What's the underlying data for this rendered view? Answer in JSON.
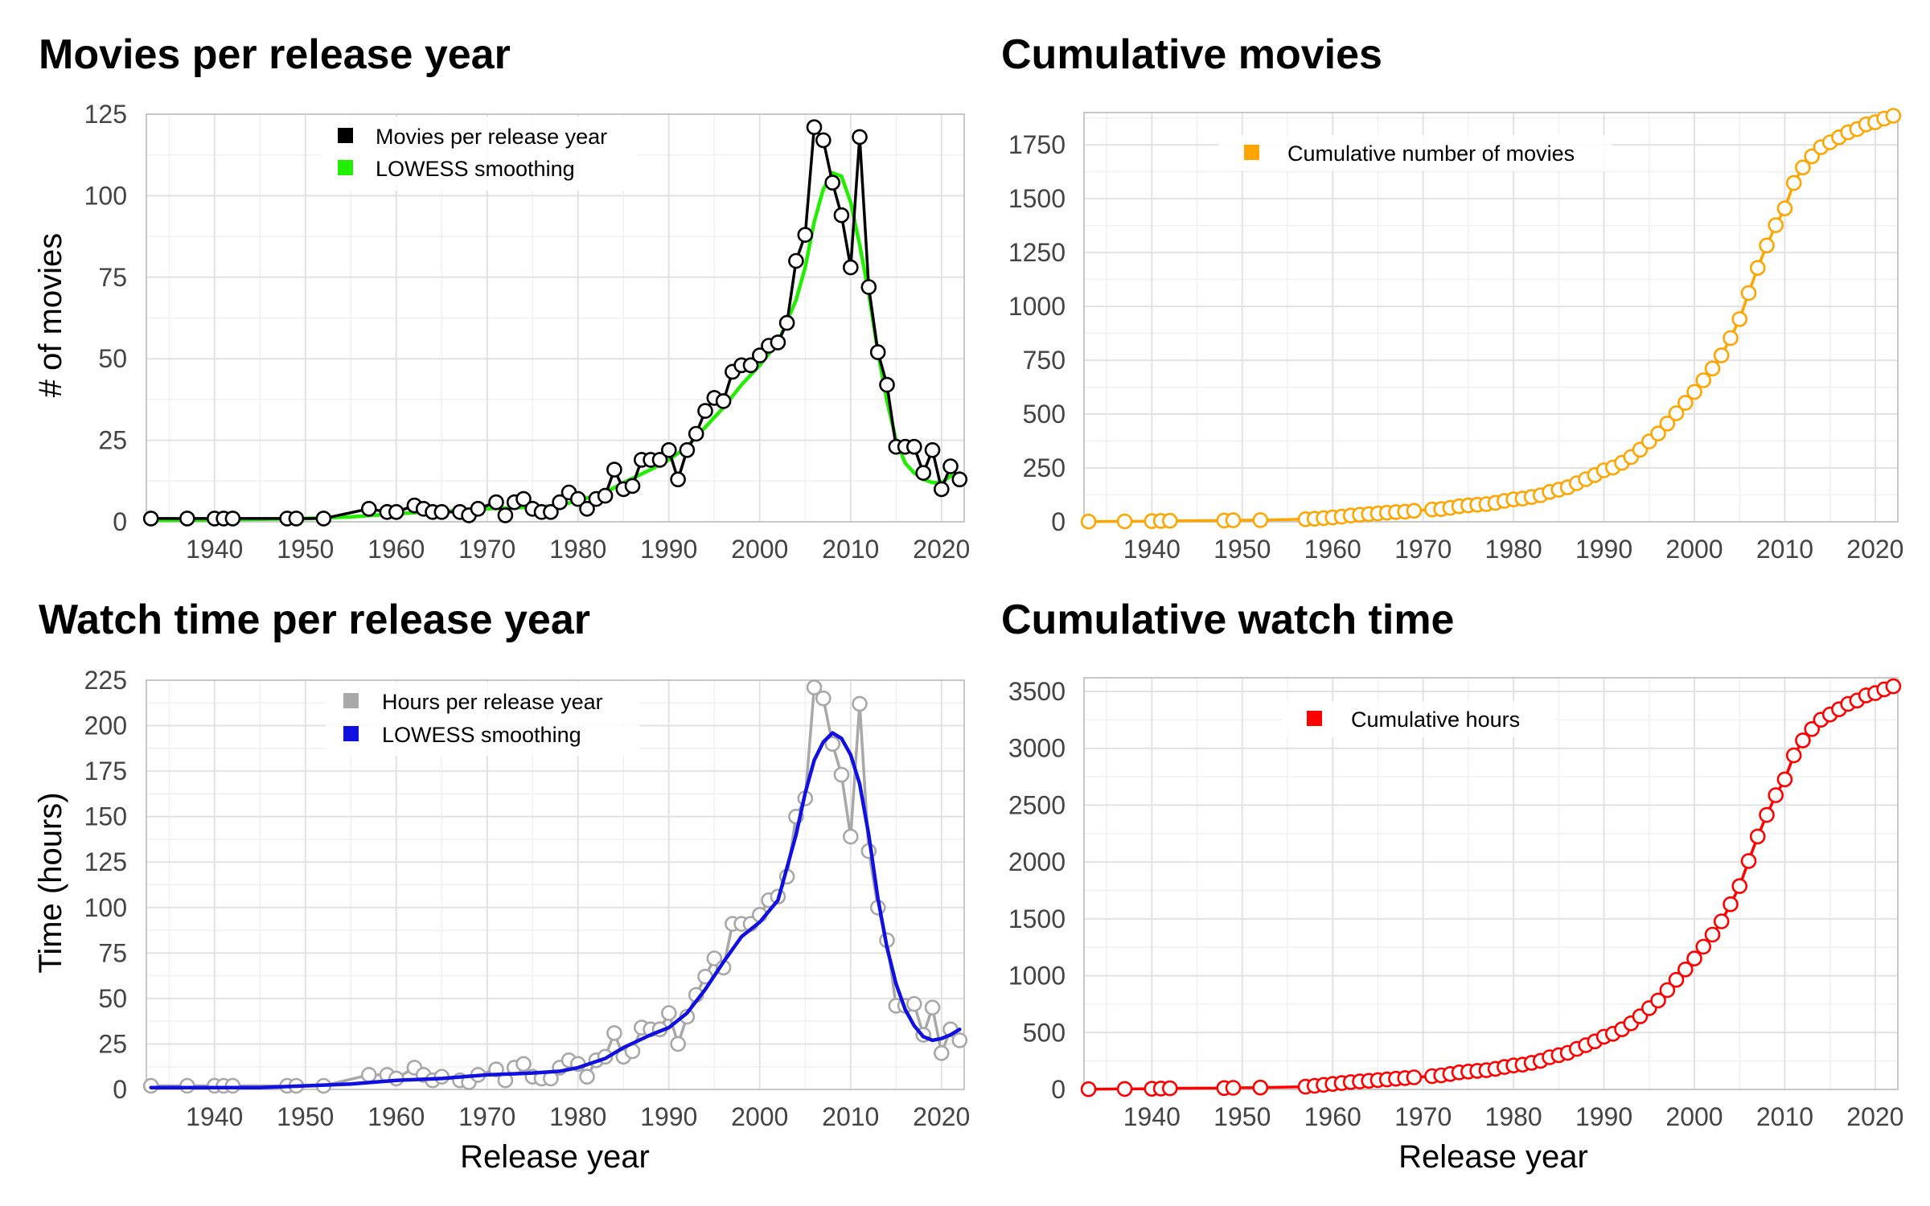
{
  "chart_data": [
    {
      "id": "movies",
      "type": "line",
      "title": "Movies per release year",
      "xlabel": "",
      "ylabel": "# of movies",
      "xlim": [
        1932.5,
        2022.5
      ],
      "ylim": [
        0,
        125
      ],
      "xticks": [
        1940,
        1950,
        1960,
        1970,
        1980,
        1990,
        2000,
        2010,
        2020
      ],
      "yticks": [
        0,
        25,
        50,
        75,
        100,
        125
      ],
      "grid": true,
      "legend": "top-center",
      "series": [
        {
          "name": "Movies per release year",
          "color": "#000000",
          "marker": "open-circle",
          "x": [
            1933,
            1937,
            1940,
            1941,
            1942,
            1948,
            1949,
            1952,
            1957,
            1959,
            1960,
            1962,
            1963,
            1964,
            1965,
            1967,
            1968,
            1969,
            1971,
            1972,
            1973,
            1974,
            1975,
            1976,
            1977,
            1978,
            1979,
            1980,
            1981,
            1982,
            1983,
            1984,
            1985,
            1986,
            1987,
            1988,
            1989,
            1990,
            1991,
            1992,
            1993,
            1994,
            1995,
            1996,
            1997,
            1998,
            1999,
            2000,
            2001,
            2002,
            2003,
            2004,
            2005,
            2006,
            2007,
            2008,
            2009,
            2010,
            2011,
            2012,
            2013,
            2014,
            2015,
            2016,
            2017,
            2018,
            2019,
            2020,
            2021,
            2022
          ],
          "values": [
            1,
            1,
            1,
            1,
            1,
            1,
            1,
            1,
            4,
            3,
            3,
            5,
            4,
            3,
            3,
            3,
            2,
            4,
            6,
            2,
            6,
            7,
            4,
            3,
            3,
            6,
            9,
            7,
            4,
            7,
            8,
            16,
            10,
            11,
            19,
            19,
            19,
            22,
            13,
            22,
            27,
            34,
            38,
            37,
            46,
            48,
            48,
            51,
            54,
            55,
            61,
            80,
            88,
            121,
            117,
            104,
            94,
            78,
            118,
            72,
            52,
            42,
            23,
            23,
            23,
            15,
            22,
            10,
            17,
            13
          ]
        },
        {
          "name": "LOWESS smoothing",
          "color": "#22ee00",
          "marker": "none",
          "x": [
            1933,
            1937,
            1940,
            1945,
            1950,
            1955,
            1960,
            1965,
            1970,
            1975,
            1978,
            1980,
            1983,
            1985,
            1988,
            1990,
            1992,
            1994,
            1996,
            1998,
            2000,
            2002,
            2004,
            2005,
            2006,
            2007,
            2008,
            2009,
            2010,
            2011,
            2012,
            2013,
            2014,
            2015,
            2016,
            2017,
            2018,
            2019,
            2020,
            2021,
            2022
          ],
          "values": [
            0.5,
            0.5,
            0.6,
            0.8,
            1.0,
            1.5,
            2.5,
            3.2,
            4.0,
            4.5,
            5.0,
            6.5,
            9.0,
            12,
            16,
            19,
            23,
            29,
            35,
            42,
            48,
            55,
            68,
            78,
            92,
            102,
            107,
            106,
            98,
            85,
            70,
            52,
            37,
            25,
            18,
            15,
            13,
            12,
            12,
            14,
            15
          ]
        }
      ]
    },
    {
      "id": "cummovies",
      "type": "line",
      "title": "Cumulative movies",
      "xlabel": "",
      "ylabel": "",
      "xlim": [
        1932.5,
        2022.5
      ],
      "ylim": [
        0,
        1900
      ],
      "xticks": [
        1940,
        1950,
        1960,
        1970,
        1980,
        1990,
        2000,
        2010,
        2020
      ],
      "yticks": [
        0,
        250,
        500,
        750,
        1000,
        1250,
        1500,
        1750
      ],
      "grid": true,
      "legend": "top-center",
      "series": [
        {
          "name": "Cumulative number of movies",
          "color": "#ffa500",
          "marker": "open-circle",
          "x": [
            1933,
            1937,
            1940,
            1941,
            1942,
            1948,
            1949,
            1952,
            1957,
            1958,
            1959,
            1960,
            1961,
            1962,
            1963,
            1964,
            1965,
            1966,
            1967,
            1968,
            1969,
            1971,
            1972,
            1973,
            1974,
            1975,
            1976,
            1977,
            1978,
            1979,
            1980,
            1981,
            1982,
            1983,
            1984,
            1985,
            1986,
            1987,
            1988,
            1989,
            1990,
            1991,
            1992,
            1993,
            1994,
            1995,
            1996,
            1997,
            1998,
            1999,
            2000,
            2001,
            2002,
            2003,
            2004,
            2005,
            2006,
            2007,
            2008,
            2009,
            2010,
            2011,
            2012,
            2013,
            2014,
            2015,
            2016,
            2017,
            2018,
            2019,
            2020,
            2021,
            2022
          ],
          "values": [
            1,
            2,
            3,
            4,
            5,
            6,
            7,
            8,
            12,
            14,
            17,
            20,
            24,
            29,
            33,
            36,
            39,
            42,
            45,
            47,
            51,
            57,
            59,
            65,
            72,
            76,
            79,
            82,
            88,
            97,
            104,
            108,
            115,
            123,
            139,
            149,
            160,
            179,
            198,
            217,
            239,
            252,
            274,
            301,
            335,
            373,
            410,
            456,
            504,
            552,
            603,
            657,
            712,
            773,
            853,
            941,
            1062,
            1179,
            1283,
            1377,
            1455,
            1573,
            1645,
            1697,
            1739,
            1762,
            1785,
            1808,
            1823,
            1845,
            1855,
            1872,
            1885
          ]
        }
      ]
    },
    {
      "id": "watch",
      "type": "line",
      "title": "Watch time per release year",
      "xlabel": "Release year",
      "ylabel": "Time (hours)",
      "xlim": [
        1932.5,
        2022.5
      ],
      "ylim": [
        0,
        225
      ],
      "xticks": [
        1940,
        1950,
        1960,
        1970,
        1980,
        1990,
        2000,
        2010,
        2020
      ],
      "yticks": [
        0,
        25,
        50,
        75,
        100,
        125,
        150,
        175,
        200,
        225
      ],
      "grid": true,
      "legend": "top-center",
      "series": [
        {
          "name": "Hours per release year",
          "color": "#a8a8a8",
          "marker": "open-circle",
          "x": [
            1933,
            1937,
            1940,
            1941,
            1942,
            1948,
            1949,
            1952,
            1957,
            1959,
            1960,
            1962,
            1963,
            1964,
            1965,
            1967,
            1968,
            1969,
            1971,
            1972,
            1973,
            1974,
            1975,
            1976,
            1977,
            1978,
            1979,
            1980,
            1981,
            1982,
            1983,
            1984,
            1985,
            1986,
            1987,
            1988,
            1989,
            1990,
            1991,
            1992,
            1993,
            1994,
            1995,
            1996,
            1997,
            1998,
            1999,
            2000,
            2001,
            2002,
            2003,
            2004,
            2005,
            2006,
            2007,
            2008,
            2009,
            2010,
            2011,
            2012,
            2013,
            2014,
            2015,
            2016,
            2017,
            2018,
            2019,
            2020,
            2021,
            2022
          ],
          "values": [
            2,
            2,
            2,
            2,
            2,
            2,
            2,
            2,
            8,
            8,
            6,
            12,
            8,
            5,
            7,
            5,
            4,
            8,
            11,
            5,
            12,
            14,
            7,
            6,
            6,
            12,
            16,
            14,
            7,
            16,
            18,
            31,
            18,
            21,
            34,
            33,
            33,
            42,
            25,
            40,
            52,
            62,
            72,
            67,
            91,
            91,
            91,
            96,
            104,
            106,
            117,
            150,
            160,
            221,
            215,
            190,
            173,
            139,
            212,
            131,
            100,
            82,
            46,
            46,
            47,
            30,
            45,
            20,
            33,
            27
          ]
        },
        {
          "name": "LOWESS smoothing",
          "color": "#1010e0",
          "marker": "none",
          "x": [
            1933,
            1937,
            1940,
            1945,
            1950,
            1955,
            1960,
            1965,
            1970,
            1975,
            1978,
            1980,
            1983,
            1985,
            1988,
            1990,
            1992,
            1994,
            1996,
            1998,
            2000,
            2002,
            2004,
            2005,
            2006,
            2007,
            2008,
            2009,
            2010,
            2011,
            2012,
            2013,
            2014,
            2015,
            2016,
            2017,
            2018,
            2019,
            2020,
            2021,
            2022
          ],
          "values": [
            1,
            1,
            1,
            1,
            2,
            3,
            5,
            6,
            8,
            9,
            10,
            12,
            17,
            23,
            30,
            34,
            42,
            55,
            70,
            84,
            92,
            104,
            140,
            163,
            181,
            191,
            196,
            193,
            184,
            168,
            140,
            105,
            78,
            58,
            44,
            35,
            29,
            27,
            28,
            30,
            33
          ]
        }
      ]
    },
    {
      "id": "cumwatch",
      "type": "line",
      "title": "Cumulative watch time",
      "xlabel": "Release year",
      "ylabel": "",
      "xlim": [
        1932.5,
        2022.5
      ],
      "ylim": [
        0,
        3620
      ],
      "xticks": [
        1940,
        1950,
        1960,
        1970,
        1980,
        1990,
        2000,
        2010,
        2020
      ],
      "yticks": [
        0,
        500,
        1000,
        1500,
        2000,
        2500,
        3000,
        3500
      ],
      "grid": true,
      "legend": "top-center",
      "series": [
        {
          "name": "Cumulative hours",
          "color": "#ff0000",
          "marker": "open-circle",
          "x": [
            1933,
            1937,
            1940,
            1941,
            1942,
            1948,
            1949,
            1952,
            1957,
            1958,
            1959,
            1960,
            1961,
            1962,
            1963,
            1964,
            1965,
            1966,
            1967,
            1968,
            1969,
            1971,
            1972,
            1973,
            1974,
            1975,
            1976,
            1977,
            1978,
            1979,
            1980,
            1981,
            1982,
            1983,
            1984,
            1985,
            1986,
            1987,
            1988,
            1989,
            1990,
            1991,
            1992,
            1993,
            1994,
            1995,
            1996,
            1997,
            1998,
            1999,
            2000,
            2001,
            2002,
            2003,
            2004,
            2005,
            2006,
            2007,
            2008,
            2009,
            2010,
            2011,
            2012,
            2013,
            2014,
            2015,
            2016,
            2017,
            2018,
            2019,
            2020,
            2021,
            2022
          ],
          "values": [
            2,
            4,
            6,
            8,
            10,
            12,
            14,
            16,
            24,
            32,
            40,
            48,
            56,
            64,
            70,
            76,
            82,
            88,
            94,
            100,
            106,
            117,
            124,
            136,
            150,
            157,
            163,
            169,
            181,
            197,
            211,
            218,
            234,
            252,
            283,
            301,
            322,
            356,
            389,
            422,
            464,
            489,
            529,
            581,
            643,
            715,
            782,
            873,
            964,
            1055,
            1151,
            1255,
            1361,
            1478,
            1628,
            1788,
            2009,
            2224,
            2414,
            2587,
            2726,
            2938,
            3069,
            3169,
            3251,
            3297,
            3343,
            3390,
            3420,
            3465,
            3485,
            3518,
            3545
          ]
        }
      ]
    }
  ]
}
